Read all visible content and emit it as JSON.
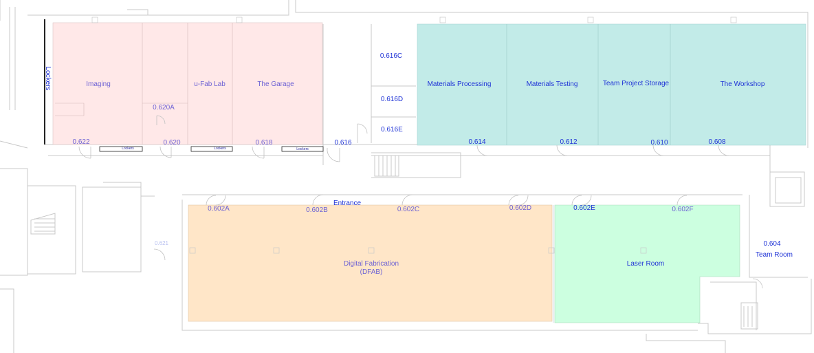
{
  "colors": {
    "pink_zone": "#ffe8e8",
    "teal_zone": "#c2ebe8",
    "orange_zone": "#ffe6c8",
    "green_zone": "#ccffe0",
    "wall": "#c8c8c8",
    "text_purple": "#6e62d4",
    "text_blue": "#1f33d6"
  },
  "labels": {
    "lockers_vertical": "Lockers",
    "lockers_small": "Lockers",
    "imaging": "Imaging",
    "ufab_lab": "u-Fab Lab",
    "the_garage": "The Garage",
    "r620a": "0.620A",
    "r622": "0.622",
    "r620": "0.620",
    "r618": "0.618",
    "r616": "0.616",
    "r616c": "0.616C",
    "r616d": "0.616D",
    "r616e": "0.616E",
    "materials_processing": "Materials Processing",
    "materials_testing": "Materials Testing",
    "team_project_storage": "Team Project Storage",
    "the_workshop": "The Workshop",
    "r614": "0.614",
    "r612": "0.612",
    "r610": "0.610",
    "r608": "0.608",
    "entrance": "Entrance",
    "r602a": "0.602A",
    "r602b": "0.602B",
    "r602c": "0.602C",
    "r602d": "0.602D",
    "r602e": "0.602E",
    "r602f": "0.602F",
    "digital_fabrication_line1": "Digital Fabrication",
    "digital_fabrication_line2": "(DFAB)",
    "laser_room": "Laser Room",
    "r604": "0.604",
    "team_room": "Team Room",
    "r621": "0.621"
  }
}
